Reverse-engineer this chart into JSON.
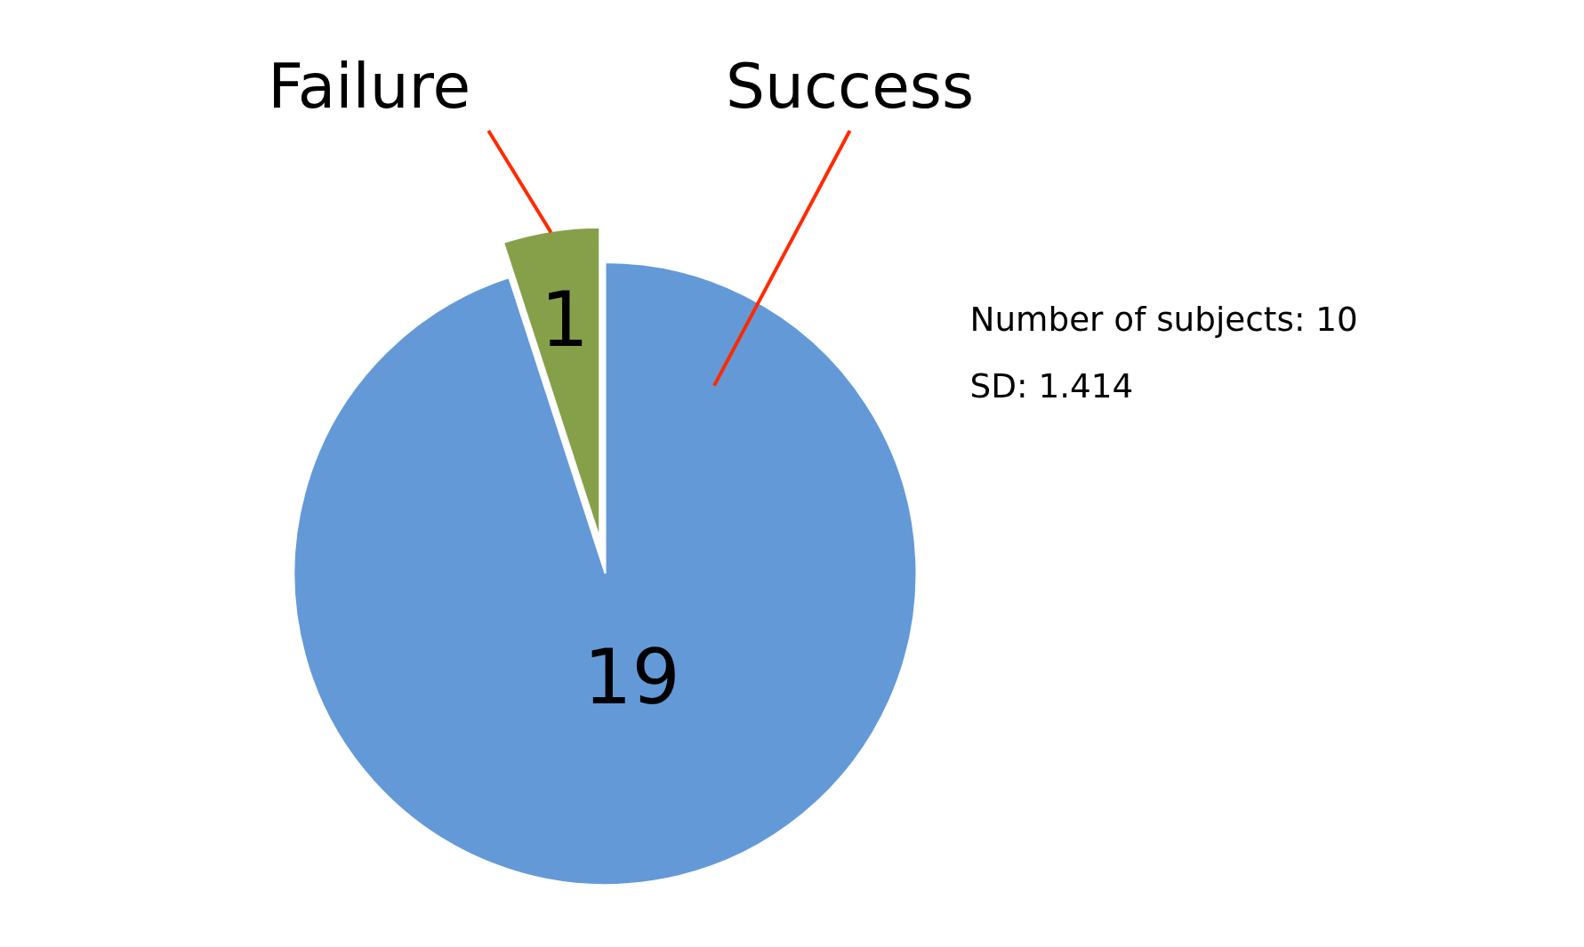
{
  "chart_data": {
    "type": "pie",
    "categories": [
      "Success",
      "Failure"
    ],
    "values": [
      19,
      1
    ],
    "colors": [
      "#6499d8",
      "#86a04a"
    ],
    "data_labels": true,
    "annotations": [
      "Number of subjects: 10",
      "SD: 1.414"
    ]
  }
}
